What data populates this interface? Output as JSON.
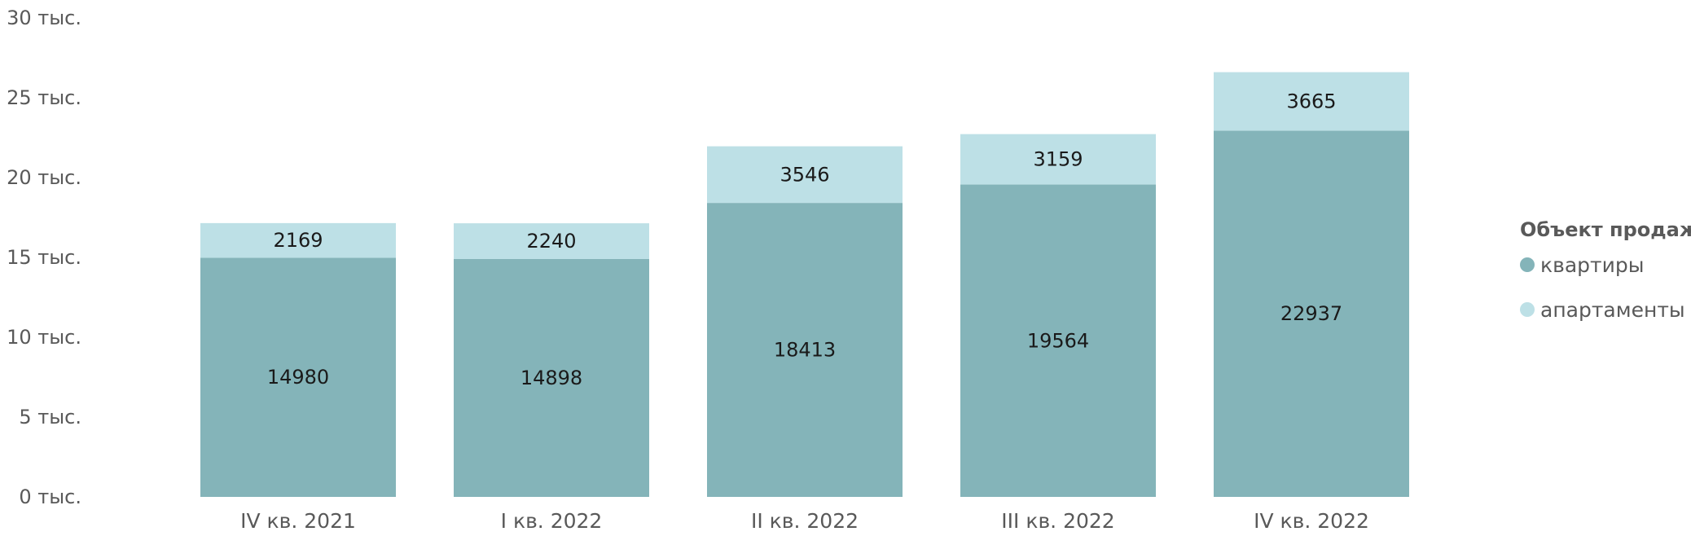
{
  "chart_data": {
    "type": "bar",
    "stacked": true,
    "categories": [
      "IV кв. 2021",
      "I кв. 2022",
      "II кв. 2022",
      "III кв. 2022",
      "IV кв. 2022"
    ],
    "series": [
      {
        "name": "квартиры",
        "values": [
          14980,
          14898,
          18413,
          19564,
          22937
        ],
        "color": "#84b4b9"
      },
      {
        "name": "апартаменты",
        "values": [
          2169,
          2240,
          3546,
          3159,
          3665
        ],
        "color": "#bde0e6"
      }
    ],
    "title": "",
    "xlabel": "",
    "ylabel": "",
    "ylim": [
      0,
      30000
    ],
    "yticks": [
      0,
      5000,
      10000,
      15000,
      20000,
      25000,
      30000
    ],
    "ytick_labels": [
      "0 тыс.",
      "5 тыс.",
      "10 тыс.",
      "15 тыс.",
      "20 тыс.",
      "25 тыс.",
      "30 тыс."
    ],
    "grid": false,
    "legend": {
      "title": "Объект продаж",
      "position": "right"
    }
  }
}
